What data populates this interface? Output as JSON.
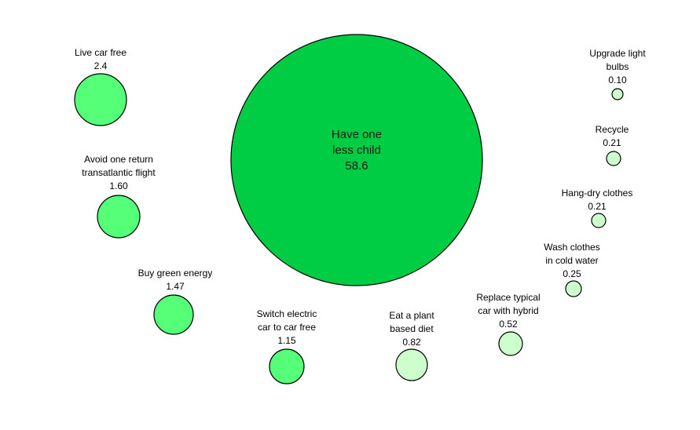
{
  "chart_data": {
    "type": "bubble",
    "title": "",
    "legend": "none",
    "grid": false,
    "bubbles": [
      {
        "label": [
          "Have one",
          "less child"
        ],
        "value": 58.6,
        "value_text": "58.6",
        "color": "#00cc44"
      },
      {
        "label": [
          "Live car free"
        ],
        "value": 2.4,
        "value_text": "2.4",
        "color": "#55ff77"
      },
      {
        "label": [
          "Avoid one return",
          "transatlantic flight"
        ],
        "value": 1.6,
        "value_text": "1.60",
        "color": "#55ff77"
      },
      {
        "label": [
          "Buy green energy"
        ],
        "value": 1.47,
        "value_text": "1.47",
        "color": "#55ff77"
      },
      {
        "label": [
          "Switch electric",
          "car to car free"
        ],
        "value": 1.15,
        "value_text": "1.15",
        "color": "#55ff77"
      },
      {
        "label": [
          "Eat a plant",
          "based diet"
        ],
        "value": 0.82,
        "value_text": "0.82",
        "color": "#ccffcc"
      },
      {
        "label": [
          "Replace typical",
          "car with hybrid"
        ],
        "value": 0.52,
        "value_text": "0.52",
        "color": "#ccffcc"
      },
      {
        "label": [
          "Wash clothes",
          "in cold water"
        ],
        "value": 0.25,
        "value_text": "0.25",
        "color": "#ccffcc"
      },
      {
        "label": [
          "Hang-dry clothes"
        ],
        "value": 0.21,
        "value_text": "0.21",
        "color": "#ccffcc"
      },
      {
        "label": [
          "Recycle"
        ],
        "value": 0.21,
        "value_text": "0.21",
        "color": "#ccffcc"
      },
      {
        "label": [
          "Upgrade light",
          "bulbs"
        ],
        "value": 0.1,
        "value_text": "0.10",
        "color": "#ccffcc"
      }
    ]
  }
}
